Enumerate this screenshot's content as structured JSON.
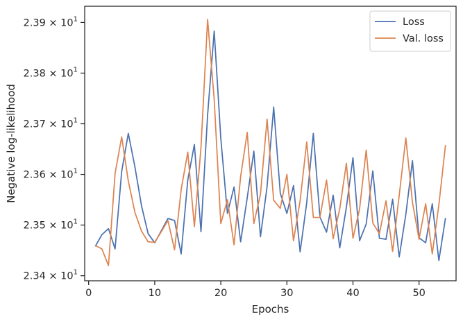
{
  "chart_data": {
    "type": "line",
    "xlabel": "Epochs",
    "ylabel": "Negative log-likelihood",
    "xlim": [
      -0.6,
      55.6
    ],
    "ylim": [
      23.39,
      23.932
    ],
    "x_ticks": [
      0,
      10,
      20,
      30,
      40,
      50
    ],
    "y_ticks": [
      {
        "value": 23.4,
        "mantissa": "2.34"
      },
      {
        "value": 23.5,
        "mantissa": "2.35"
      },
      {
        "value": 23.6,
        "mantissa": "2.36"
      },
      {
        "value": 23.7,
        "mantissa": "2.37"
      },
      {
        "value": 23.8,
        "mantissa": "2.38"
      },
      {
        "value": 23.9,
        "mantissa": "2.39"
      }
    ],
    "y_tick_suffix": "× 10",
    "y_tick_exponent": "1",
    "legend_position": "upper right",
    "grid": false,
    "x": [
      1,
      2,
      3,
      4,
      5,
      6,
      7,
      8,
      9,
      10,
      11,
      12,
      13,
      14,
      15,
      16,
      17,
      18,
      19,
      20,
      21,
      22,
      23,
      24,
      25,
      26,
      27,
      28,
      29,
      30,
      31,
      32,
      33,
      34,
      35,
      36,
      37,
      38,
      39,
      40,
      41,
      42,
      43,
      44,
      45,
      46,
      47,
      48,
      49,
      50,
      51,
      52,
      53,
      54
    ],
    "series": [
      {
        "name": "Loss",
        "color": "#4c72b0",
        "values": [
          23.458,
          23.481,
          23.493,
          23.453,
          23.606,
          23.681,
          23.615,
          23.538,
          23.483,
          23.465,
          23.489,
          23.513,
          23.509,
          23.443,
          23.589,
          23.659,
          23.487,
          23.717,
          23.883,
          23.671,
          23.523,
          23.575,
          23.467,
          23.554,
          23.646,
          23.477,
          23.576,
          23.733,
          23.563,
          23.523,
          23.578,
          23.447,
          23.544,
          23.681,
          23.516,
          23.486,
          23.559,
          23.455,
          23.535,
          23.633,
          23.469,
          23.502,
          23.607,
          23.474,
          23.472,
          23.551,
          23.437,
          23.521,
          23.627,
          23.475,
          23.465,
          23.542,
          23.43,
          23.514
        ]
      },
      {
        "name": "Val. loss",
        "color": "#dd8452",
        "values": [
          23.46,
          23.453,
          23.42,
          23.602,
          23.674,
          23.587,
          23.525,
          23.488,
          23.467,
          23.466,
          23.487,
          23.509,
          23.451,
          23.57,
          23.644,
          23.497,
          23.653,
          23.906,
          23.748,
          23.503,
          23.55,
          23.461,
          23.596,
          23.683,
          23.503,
          23.561,
          23.709,
          23.549,
          23.533,
          23.6,
          23.469,
          23.548,
          23.664,
          23.515,
          23.515,
          23.589,
          23.473,
          23.532,
          23.622,
          23.474,
          23.532,
          23.648,
          23.504,
          23.483,
          23.548,
          23.448,
          23.559,
          23.672,
          23.545,
          23.472,
          23.542,
          23.443,
          23.54,
          23.658
        ]
      }
    ]
  }
}
